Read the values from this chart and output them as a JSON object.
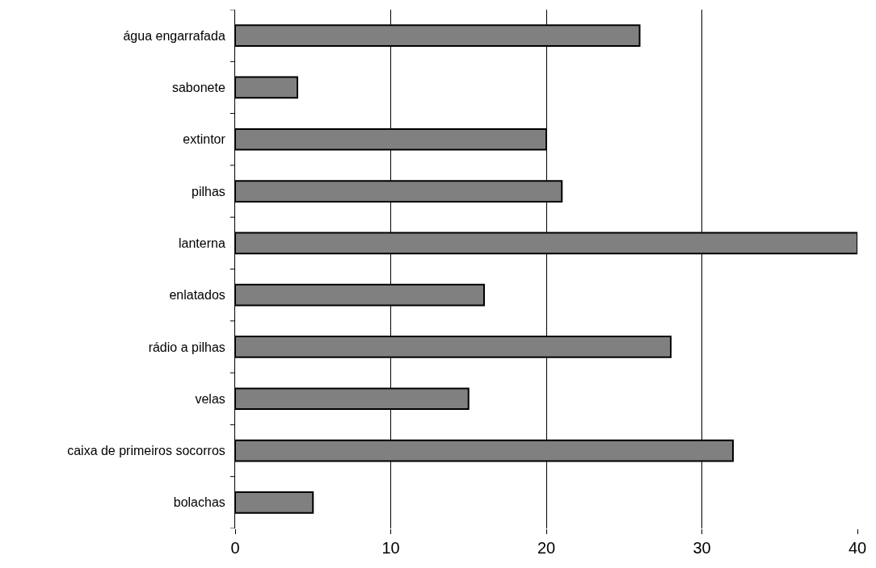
{
  "chart_data": {
    "type": "bar",
    "orientation": "horizontal",
    "categories": [
      "água engarrafada",
      "sabonete",
      "extintor",
      "pilhas",
      "lanterna",
      "enlatados",
      "rádio a pilhas",
      "velas",
      "caixa de primeiros socorros",
      "bolachas"
    ],
    "values": [
      26,
      4,
      20,
      21,
      40,
      16,
      28,
      15,
      32,
      5
    ],
    "color": "#808080",
    "xlim": [
      0,
      40
    ],
    "xticks": [
      0,
      10,
      20,
      30,
      40
    ],
    "grid": "x",
    "legend": false
  }
}
